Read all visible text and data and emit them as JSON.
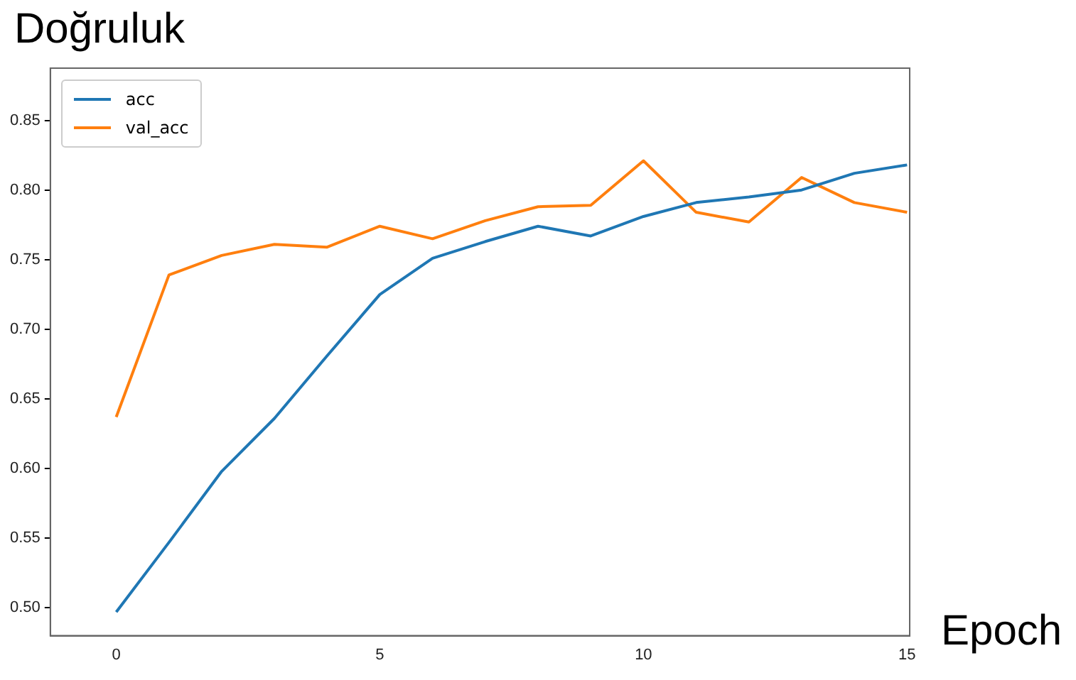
{
  "chart_data": {
    "type": "line",
    "title": "Doğruluk",
    "xlabel": "Epoch",
    "x": [
      0,
      1,
      2,
      3,
      4,
      5,
      6,
      7,
      8,
      9,
      10,
      11,
      12,
      13,
      14,
      15
    ],
    "series": [
      {
        "name": "acc",
        "color": "#1f77b4",
        "values": [
          0.497,
          0.547,
          0.598,
          0.636,
          0.681,
          0.725,
          0.751,
          0.763,
          0.774,
          0.767,
          0.781,
          0.791,
          0.795,
          0.8,
          0.812,
          0.818
        ]
      },
      {
        "name": "val_acc",
        "color": "#ff7f0e",
        "values": [
          0.637,
          0.739,
          0.753,
          0.761,
          0.759,
          0.774,
          0.765,
          0.778,
          0.788,
          0.789,
          0.821,
          0.784,
          0.777,
          0.809,
          0.791,
          0.784
        ]
      }
    ],
    "xlim": [
      -1.25,
      15.05
    ],
    "xticks": [
      0,
      5,
      10,
      15
    ],
    "ylim": [
      0.48,
      0.8875
    ],
    "yticks": [
      {
        "value": 0.5,
        "label": "0.50"
      },
      0.55,
      {
        "value": 0.6,
        "label": "0.60"
      },
      0.65,
      {
        "value": 0.7,
        "label": "0.70"
      },
      0.75,
      {
        "value": 0.8,
        "label": "0.80"
      },
      0.85
    ],
    "grid": false,
    "legend": "top left",
    "marker": "none",
    "line_style": "solid"
  }
}
